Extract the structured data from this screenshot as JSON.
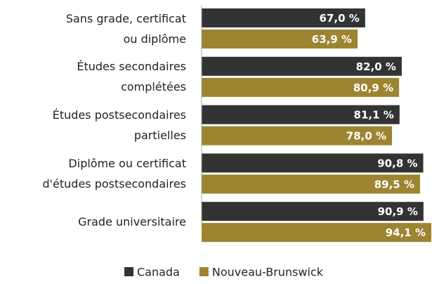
{
  "chart_data": {
    "type": "hbar",
    "categories": [
      "Sans grade, certificat\nou diplôme",
      "Études secondaires\ncomplétées",
      "Études postsecondaires\npartielles",
      "Diplôme ou certificat\nd'études postsecondaires",
      "Grade universitaire"
    ],
    "series": [
      {
        "name": "Canada",
        "color": "#333333",
        "values": [
          67.0,
          82.0,
          81.1,
          90.8,
          90.9
        ],
        "value_labels": [
          "67,0 %",
          "82,0 %",
          "81,1 %",
          "90,8 %",
          "90,9 %"
        ]
      },
      {
        "name": "Nouveau-Brunswick",
        "color": "#9d8430",
        "values": [
          63.9,
          80.9,
          78.0,
          89.5,
          94.1
        ],
        "value_labels": [
          "63,9 %",
          "80,9 %",
          "78,0 %",
          "89,5 %",
          "94,1 %"
        ]
      }
    ],
    "xlim": [
      0,
      100
    ],
    "legend": "bottom"
  }
}
